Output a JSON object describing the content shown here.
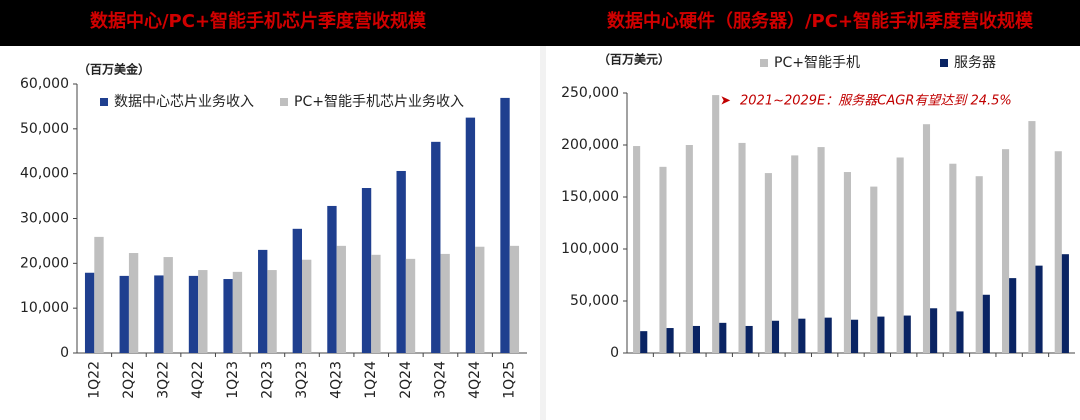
{
  "chart_data": [
    {
      "type": "bar",
      "title": "数据中心/PC+智能手机芯片季度营收规模",
      "unit_label": "（百万美金）",
      "categories": [
        "1Q22",
        "2Q22",
        "3Q22",
        "4Q22",
        "1Q23",
        "2Q23",
        "3Q23",
        "4Q23",
        "1Q24",
        "2Q24",
        "3Q24",
        "4Q24",
        "1Q25"
      ],
      "series": [
        {
          "name": "数据中心芯片业务收入",
          "color": "#1f3f8f",
          "values": [
            17900,
            17200,
            17300,
            17200,
            16500,
            23000,
            27700,
            32800,
            36800,
            40600,
            47100,
            52500,
            56900
          ]
        },
        {
          "name": "PC+智能手机芯片业务收入",
          "color": "#bfbfbf",
          "values": [
            25900,
            22300,
            21400,
            18500,
            18100,
            18500,
            20800,
            23900,
            21900,
            21000,
            22100,
            23700,
            23900
          ]
        }
      ],
      "ylim": [
        0,
        60000
      ],
      "yticks": [
        0,
        {
          "value": 10000,
          "label": "10,000"
        },
        {
          "value": 20000,
          "label": "20,000"
        },
        {
          "value": 30000,
          "label": "30,000"
        },
        {
          "value": 40000,
          "label": "40,000"
        },
        {
          "value": 50000,
          "label": "50,000"
        },
        {
          "value": 60000,
          "label": "60,000"
        }
      ],
      "grid": false
    },
    {
      "type": "bar",
      "title": "数据中心硬件（服务器）/PC+智能手机季度营收规模",
      "unit_label": "（百万美元）",
      "annotation": "2021~2029E：服务器CAGR有望达到 24.5%",
      "categories": [
        null,
        null,
        null,
        null,
        null,
        null,
        null,
        null,
        null,
        null,
        null,
        null,
        null,
        null,
        null,
        null,
        null
      ],
      "series": [
        {
          "name": "PC+智能手机",
          "color": "#bfbfbf",
          "values": [
            199000,
            179000,
            200000,
            248000,
            202000,
            173000,
            190000,
            198000,
            174000,
            160000,
            188000,
            220000,
            182000,
            170000,
            196000,
            223000,
            194000
          ]
        },
        {
          "name": "服务器",
          "color": "#0a2463",
          "values": [
            21000,
            24000,
            26000,
            29000,
            26000,
            31000,
            33000,
            34000,
            32000,
            35000,
            36000,
            43000,
            40000,
            56000,
            72000,
            84000,
            95000
          ]
        }
      ],
      "ylim": [
        0,
        250000
      ],
      "yticks": [
        0,
        {
          "value": 50000,
          "label": "50,000"
        },
        {
          "value": 100000,
          "label": "100,000"
        },
        {
          "value": 150000,
          "label": "150,000"
        },
        {
          "value": 200000,
          "label": "200,000"
        },
        {
          "value": 250000,
          "label": "250,000"
        }
      ],
      "grid": false
    }
  ]
}
